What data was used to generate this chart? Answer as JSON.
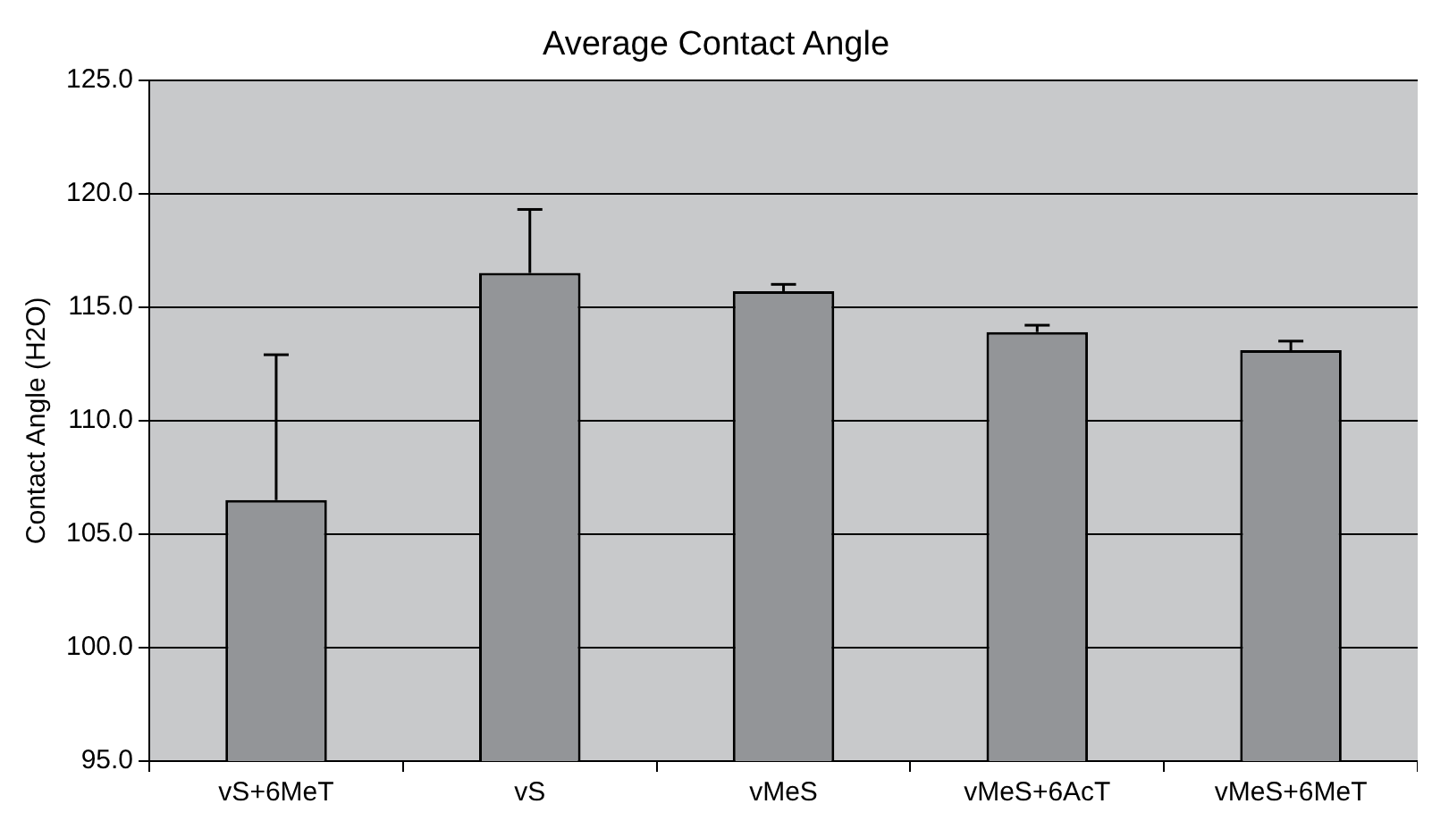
{
  "chart_data": {
    "type": "bar",
    "title": "Average Contact Angle",
    "ylabel": "Contact Angle (H2O)",
    "categories": [
      "vS+6MeT",
      "vS",
      "vMeS",
      "vMeS+6AcT",
      "vMeS+6MeT"
    ],
    "series": [
      {
        "color": "#939598",
        "values": [
          106.5,
          116.5,
          115.7,
          113.9,
          113.1
        ],
        "errors": [
          [
            106.5,
            112.9
          ],
          [
            116.5,
            119.3
          ],
          [
            115.7,
            116.0
          ],
          [
            113.9,
            114.2
          ],
          [
            113.1,
            113.5
          ]
        ]
      }
    ],
    "ylim": [
      95,
      125
    ],
    "yticks": [
      {
        "value": 95,
        "label": "95.0"
      },
      {
        "value": 100,
        "label": "100.0"
      },
      {
        "value": 105,
        "label": "105.0"
      },
      {
        "value": 110,
        "label": "110.0"
      },
      {
        "value": 115,
        "label": "115.0"
      },
      {
        "value": 120,
        "label": "120.0"
      },
      {
        "value": 125,
        "label": "125.0"
      }
    ],
    "grid": "y",
    "legend": false
  }
}
